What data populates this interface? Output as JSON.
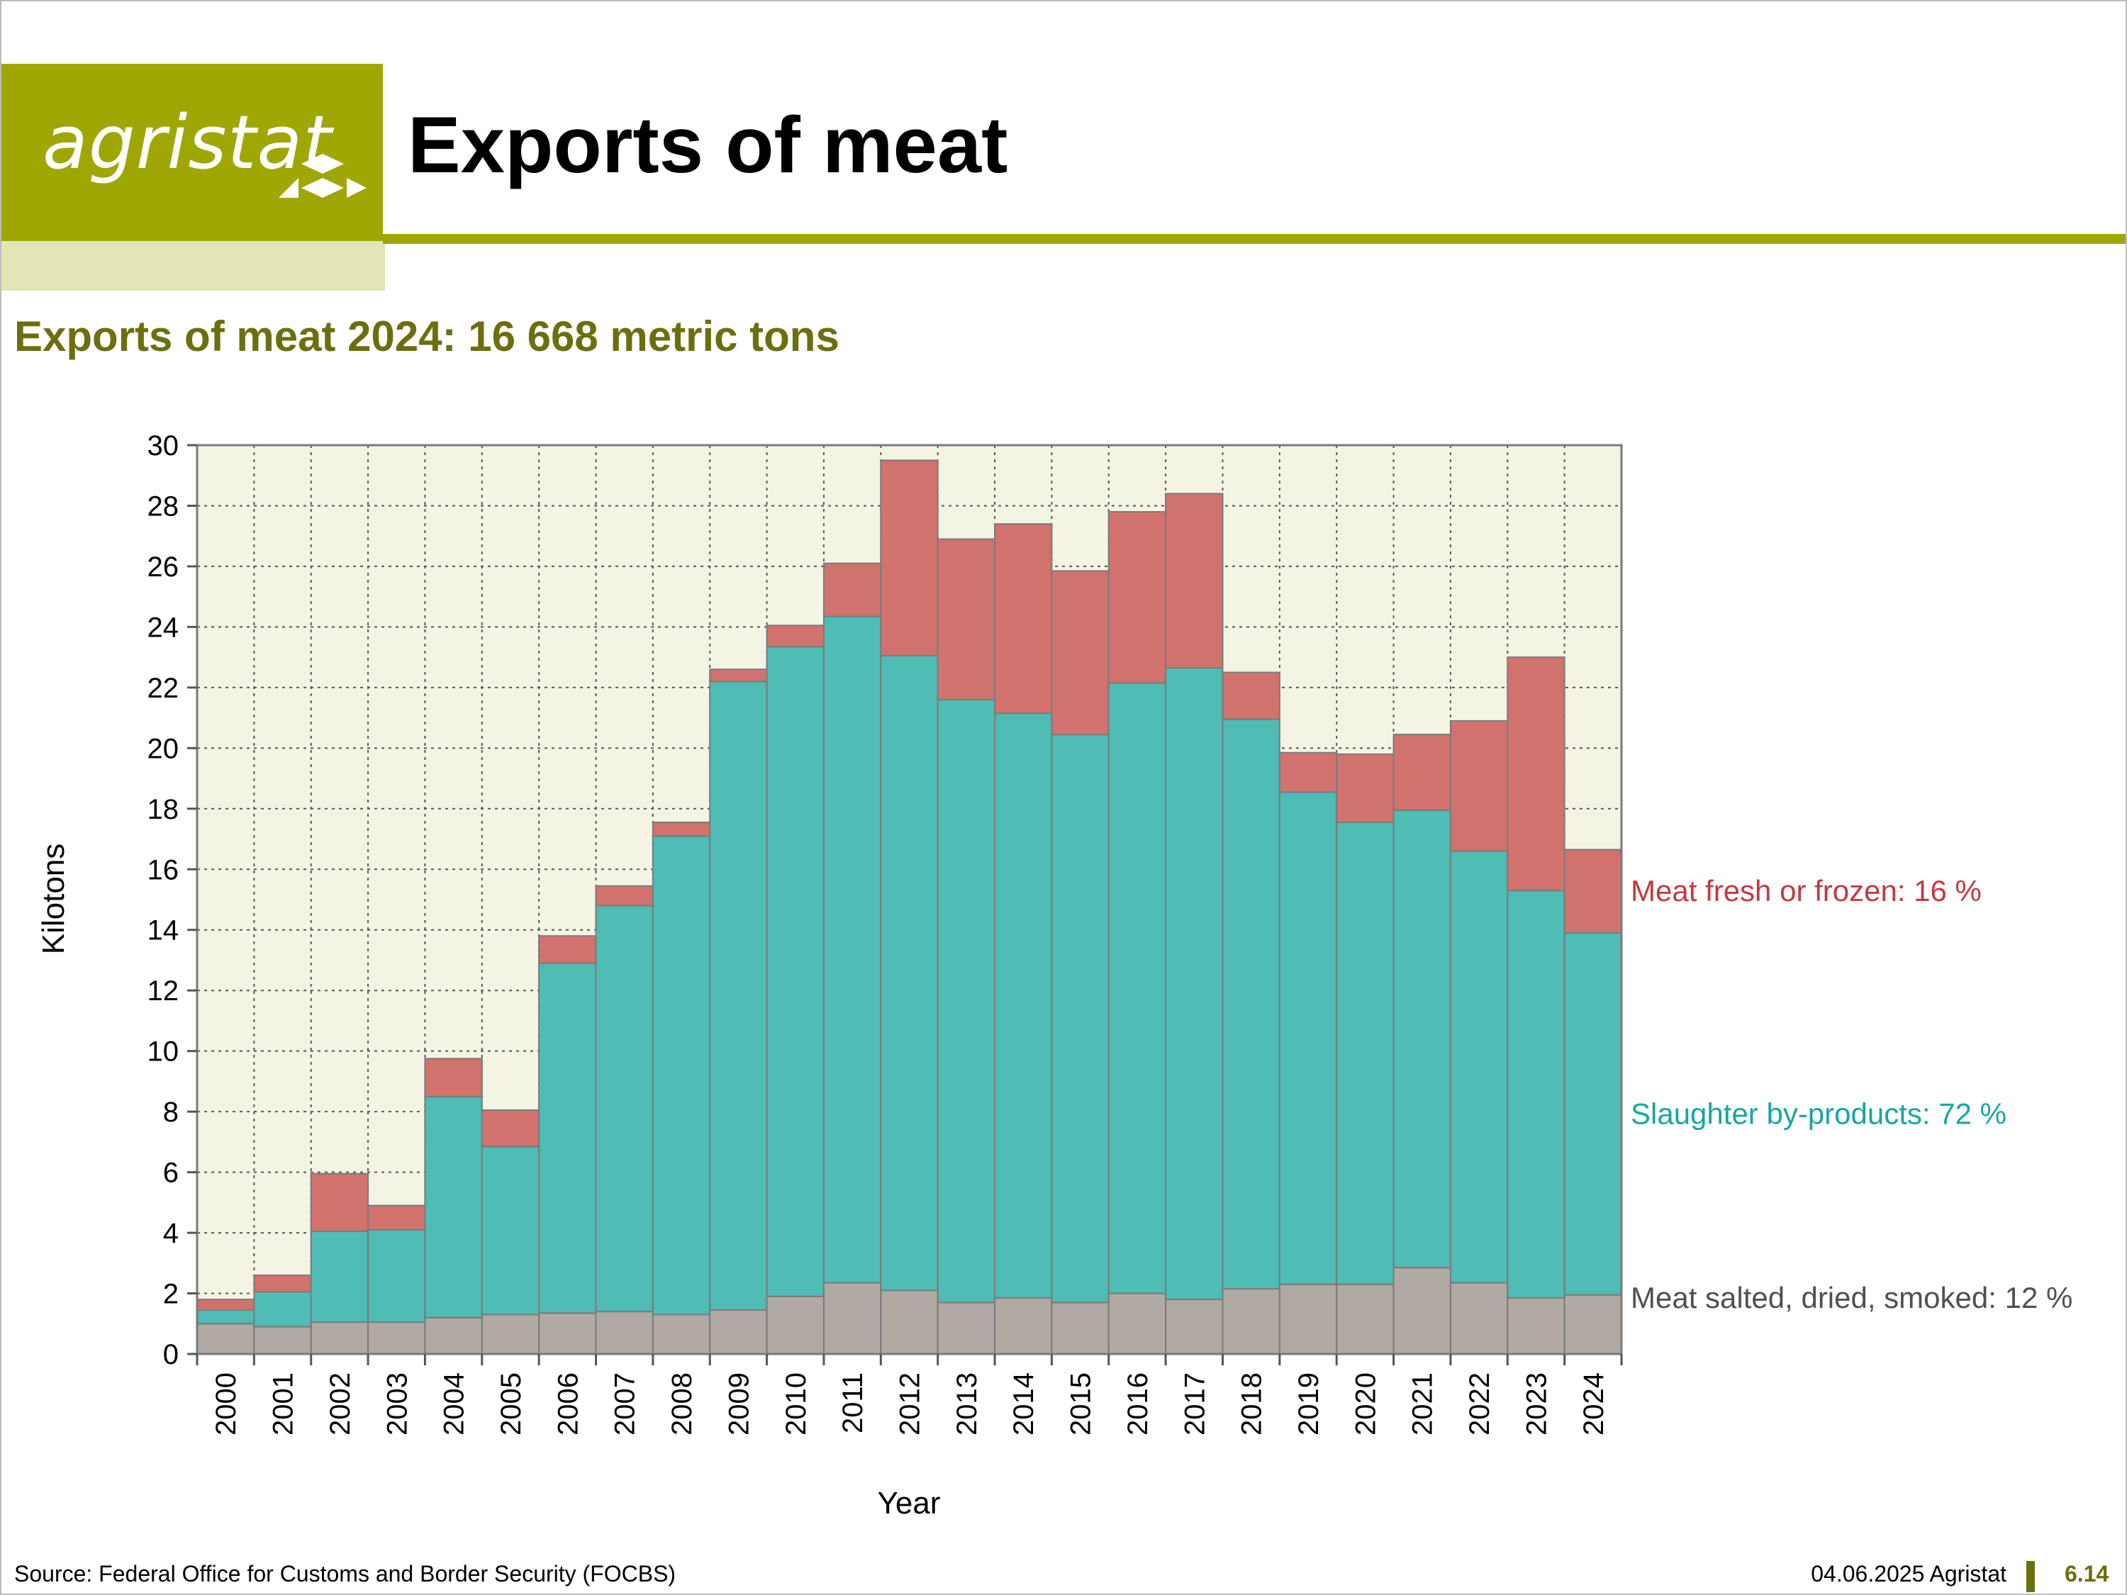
{
  "header": {
    "logo_text": "agristat",
    "title": "Exports of meat",
    "brand_color": "#9fa705"
  },
  "subtitle": "Exports of meat 2024: 16 668 metric tons",
  "chart_data": {
    "type": "bar",
    "stacked": true,
    "xlabel": "Year",
    "ylabel": "Kilotons",
    "ylim": [
      0,
      30
    ],
    "yticks": [
      0,
      2,
      4,
      6,
      8,
      10,
      12,
      14,
      16,
      18,
      20,
      22,
      24,
      26,
      28,
      30
    ],
    "grid": true,
    "categories": [
      "2000",
      "2001",
      "2002",
      "2003",
      "2004",
      "2005",
      "2006",
      "2007",
      "2008",
      "2009",
      "2010",
      "2011",
      "2012",
      "2013",
      "2014",
      "2015",
      "2016",
      "2017",
      "2018",
      "2019",
      "2020",
      "2021",
      "2022",
      "2023",
      "2024"
    ],
    "series": [
      {
        "label": "Meat salted, dried, smoked: 12 %",
        "color": "#b1aaa4",
        "label_color": "#505050",
        "values": [
          1.0,
          0.9,
          1.05,
          1.05,
          1.2,
          1.3,
          1.35,
          1.4,
          1.3,
          1.45,
          1.9,
          2.35,
          2.1,
          1.7,
          1.85,
          1.7,
          2.0,
          1.8,
          2.15,
          2.3,
          2.3,
          2.85,
          2.35,
          1.85,
          1.95
        ]
      },
      {
        "label": "Slaughter by-products: 72 %",
        "color": "#4fbcb5",
        "label_color": "#1aa6a0",
        "values": [
          0.45,
          1.15,
          3.0,
          3.05,
          7.3,
          5.55,
          11.55,
          13.4,
          15.8,
          20.75,
          21.45,
          22.0,
          20.95,
          19.9,
          19.3,
          18.75,
          20.15,
          20.85,
          18.8,
          16.25,
          15.25,
          15.1,
          14.25,
          13.45,
          11.95
        ]
      },
      {
        "label": "Meat fresh or frozen: 16 %",
        "color": "#d2726e",
        "label_color": "#c23a3e",
        "values": [
          0.35,
          0.55,
          1.9,
          0.8,
          1.25,
          1.2,
          0.9,
          0.65,
          0.45,
          0.4,
          0.7,
          1.75,
          6.45,
          5.3,
          6.25,
          5.4,
          5.65,
          5.75,
          1.55,
          1.3,
          2.25,
          2.5,
          4.3,
          7.7,
          2.75
        ]
      }
    ]
  },
  "footer": {
    "source": "Source: Federal Office for Customs and Border Security (FOCBS)",
    "date": "04.06.2025 Agristat",
    "page": "6.14"
  }
}
